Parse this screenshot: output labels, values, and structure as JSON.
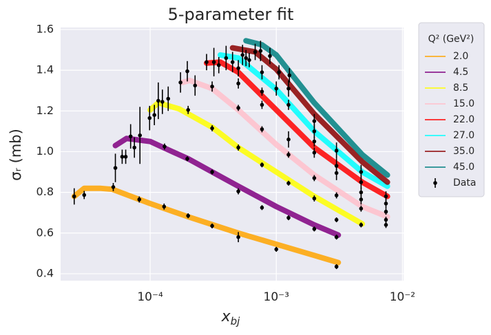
{
  "chart_data": {
    "type": "line",
    "title": "5-parameter fit",
    "xlabel": "x",
    "xlabel_subscript": "bj",
    "ylabel": "σᵣ (mb)",
    "legend_title": "Q² (GeV²)",
    "xscale": "log",
    "grid": true,
    "legend": "outside-right",
    "xlim": [
      1.95e-05,
      0.0102
    ],
    "ylim": [
      0.366,
      1.61
    ],
    "xticks": [
      {
        "value": 0.0001,
        "label": "10⁻⁴"
      },
      {
        "value": 0.001,
        "label": "10⁻³"
      },
      {
        "value": 0.01,
        "label": "10⁻²"
      }
    ],
    "yticks": [
      0.4,
      0.6,
      0.8,
      {
        "value": 1,
        "label": "1.0"
      },
      1.2,
      1.4,
      1.6
    ],
    "series": [
      {
        "name": "2.0",
        "color": "#ffa500",
        "x": [
          2.5e-05,
          3e-05,
          4e-05,
          5e-05,
          0.0001,
          0.0002,
          0.0005,
          0.001,
          0.002,
          0.0031
        ],
        "values": [
          0.78,
          0.82,
          0.82,
          0.815,
          0.745,
          0.68,
          0.6,
          0.545,
          0.49,
          0.455
        ]
      },
      {
        "name": "4.5",
        "color": "#800080",
        "x": [
          5.3e-05,
          6.5e-05,
          0.0001,
          0.00015,
          0.0002,
          0.0003,
          0.0005,
          0.001,
          0.002,
          0.0031
        ],
        "values": [
          1.03,
          1.065,
          1.05,
          1.0,
          0.965,
          0.905,
          0.83,
          0.73,
          0.64,
          0.59
        ]
      },
      {
        "name": "8.5",
        "color": "#ffff00",
        "x": [
          0.0001,
          0.000116,
          0.00017,
          0.00031,
          0.0005,
          0.001,
          0.002,
          0.0048
        ],
        "values": [
          1.205,
          1.24,
          1.21,
          1.12,
          1.02,
          0.9,
          0.78,
          0.645
        ]
      },
      {
        "name": "15.0",
        "color": "#ffc0cb",
        "x": [
          0.00018,
          0.000205,
          0.00031,
          0.0005,
          0.001,
          0.002,
          0.0048,
          0.0076
        ],
        "values": [
          1.34,
          1.35,
          1.31,
          1.205,
          1.035,
          0.885,
          0.73,
          0.68
        ]
      },
      {
        "name": "22.0",
        "color": "#ff0000",
        "x": [
          0.00028,
          0.00036,
          0.0005,
          0.001,
          0.002,
          0.0048,
          0.0076
        ],
        "values": [
          1.435,
          1.44,
          1.39,
          1.205,
          1.02,
          0.85,
          0.78
        ]
      },
      {
        "name": "27.0",
        "color": "#00ffff",
        "x": [
          0.00036,
          0.0005,
          0.001,
          0.002,
          0.0048,
          0.0076
        ],
        "values": [
          1.475,
          1.46,
          1.305,
          1.1,
          0.9,
          0.83
        ]
      },
      {
        "name": "35.0",
        "color": "#8b0000",
        "x": [
          0.00045,
          0.00068,
          0.001,
          0.002,
          0.0048,
          0.0076
        ],
        "values": [
          1.51,
          1.49,
          1.405,
          1.185,
          0.95,
          0.85
        ]
      },
      {
        "name": "45.0",
        "color": "#008080",
        "x": [
          0.000575,
          0.00077,
          0.001,
          0.002,
          0.0048,
          0.0076
        ],
        "values": [
          1.545,
          1.525,
          1.475,
          1.24,
          0.985,
          0.885
        ]
      },
      {
        "name": "Data",
        "type": "errorbar",
        "color": "#000000",
        "x": [
          2.5e-05,
          3e-05,
          5.1e-05,
          5.3e-05,
          6e-05,
          6.4e-05,
          7e-05,
          7.5e-05,
          8.2e-05,
          8.3e-05,
          9.9e-05,
          0.000108,
          0.000116,
          0.000125,
          0.00013,
          0.000129,
          0.000139,
          0.000174,
          0.000197,
          0.0002,
          0.000197,
          0.0002,
          0.000227,
          0.00028,
          0.00031,
          0.00031,
          0.00031,
          0.00031,
          0.00032,
          0.00035,
          0.0004,
          0.00045,
          0.0005,
          0.0005,
          0.0005,
          0.0005,
          0.0005,
          0.0005,
          0.00054,
          0.000575,
          0.00061,
          0.00068,
          0.00075,
          0.00077,
          0.00077,
          0.00077,
          0.00077,
          0.00077,
          0.00077,
          0.00089,
          0.001,
          0.001,
          0.00105,
          0.00127,
          0.00125,
          0.00125,
          0.00125,
          0.00125,
          0.00125,
          0.00125,
          0.002,
          0.002,
          0.002,
          0.002,
          0.002,
          0.002,
          0.002,
          0.003,
          0.003,
          0.003,
          0.003,
          0.003,
          0.003,
          0.003,
          0.0047,
          0.0047,
          0.0047,
          0.0047,
          0.0047,
          0.0047,
          0.0074,
          0.0074,
          0.0074,
          0.0074,
          0.0074
        ],
        "values": [
          0.78,
          0.787,
          0.826,
          0.92,
          0.975,
          0.975,
          1.075,
          1.02,
          0.765,
          1.08,
          1.165,
          1.18,
          1.25,
          1.245,
          1.025,
          0.73,
          1.26,
          1.34,
          1.395,
          1.205,
          0.965,
          0.685,
          1.325,
          1.44,
          1.32,
          1.115,
          0.9,
          0.635,
          1.44,
          1.425,
          1.46,
          1.44,
          1.41,
          1.335,
          1.215,
          1.02,
          0.805,
          0.58,
          1.475,
          1.46,
          1.45,
          1.49,
          1.495,
          1.39,
          1.295,
          1.23,
          1.11,
          0.935,
          0.725,
          1.47,
          1.31,
          0.52,
          1.39,
          1.375,
          1.31,
          1.23,
          1.06,
          0.985,
          0.845,
          0.675,
          1.15,
          1.1,
          1.05,
          0.995,
          0.87,
          0.77,
          0.62,
          1.005,
          0.93,
          0.895,
          0.785,
          0.665,
          0.58,
          0.435,
          0.9,
          0.85,
          0.8,
          0.765,
          0.72,
          0.64,
          0.78,
          0.745,
          0.705,
          0.665,
          0.64
        ],
        "errors": [
          0.04,
          0.02,
          0.02,
          0.07,
          0.035,
          0.035,
          0.06,
          0.05,
          0.015,
          0.14,
          0.06,
          0.05,
          0.09,
          0.06,
          0.015,
          0.015,
          0.06,
          0.05,
          0.05,
          0.02,
          0.012,
          0.012,
          0.05,
          0.04,
          0.025,
          0.015,
          0.012,
          0.012,
          0.07,
          0.04,
          0.06,
          0.05,
          0.04,
          0.025,
          0.015,
          0.015,
          0.015,
          0.025,
          0.05,
          0.04,
          0.035,
          0.04,
          0.05,
          0.035,
          0.02,
          0.02,
          0.015,
          0.012,
          0.012,
          0.04,
          0.035,
          0.012,
          0.035,
          0.035,
          0.04,
          0.025,
          0.04,
          0.015,
          0.012,
          0.012,
          0.035,
          0.035,
          0.025,
          0.025,
          0.015,
          0.015,
          0.012,
          0.04,
          0.035,
          0.035,
          0.015,
          0.012,
          0.012,
          0.012,
          0.035,
          0.035,
          0.025,
          0.025,
          0.015,
          0.012,
          0.025,
          0.025,
          0.015,
          0.015,
          0.015
        ]
      }
    ]
  }
}
